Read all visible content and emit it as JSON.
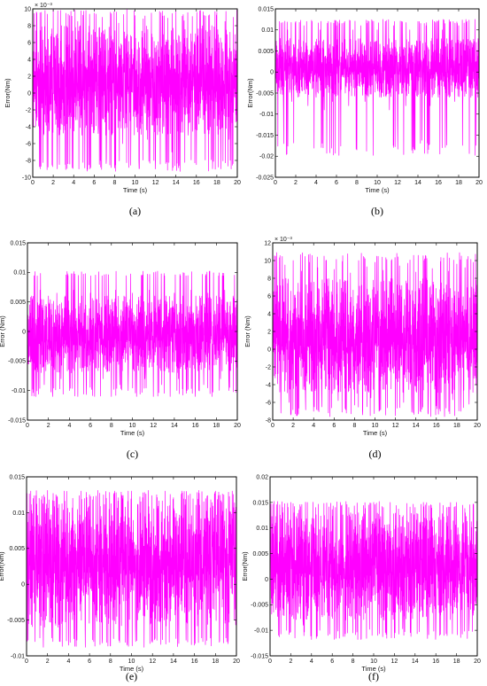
{
  "colors": {
    "trace": "#ff00ff",
    "axes": "#000000",
    "background": "#ffffff"
  },
  "chart_data": [
    {
      "id": "a",
      "type": "line",
      "caption": "(a)",
      "xlabel": "Time (s)",
      "ylabel": "Error(Nm)",
      "exponent": "× 10⁻³",
      "xlim": [
        0,
        20
      ],
      "ylim": [
        -10,
        10
      ],
      "xticks": [
        "0",
        "2",
        "4",
        "6",
        "8",
        "10",
        "12",
        "14",
        "16",
        "18",
        "20"
      ],
      "yticks": [
        "-10",
        "-8",
        "-6",
        "-4",
        "-2",
        "0",
        "2",
        "4",
        "6",
        "8",
        "10"
      ],
      "series": [
        {
          "peak_range": [
            -9.3,
            9.9
          ],
          "typical_range": [
            -5,
            8
          ],
          "x": [
            0.0,
            0.4,
            0.8,
            1.2,
            1.6,
            2.0,
            2.4,
            2.8,
            3.2,
            3.6,
            4.0,
            4.4,
            4.8,
            5.2,
            5.6,
            6.0,
            6.4,
            6.8,
            7.2,
            7.6,
            8.0,
            8.4,
            8.8,
            9.2,
            9.6,
            10.0,
            10.4,
            10.8,
            11.2,
            11.6,
            12.0,
            12.4,
            12.8,
            13.2,
            13.6,
            14.0,
            14.4,
            14.8,
            15.2,
            15.6,
            16.0,
            16.4,
            16.8,
            17.2,
            17.6,
            18.0,
            18.4,
            18.8,
            19.2,
            19.6,
            20.0
          ],
          "y": [
            0,
            9.5,
            -8.7,
            9.8,
            -4.5,
            9.9,
            -9.0,
            8.0,
            -6.5,
            9.2,
            -2.0,
            8.5,
            -5.0,
            9.8,
            -9.0,
            9.5,
            -4.8,
            9.0,
            -7.8,
            9.6,
            -8.9,
            8.3,
            -6.0,
            9.9,
            -3.5,
            9.2,
            -9.0,
            8.8,
            -5.5,
            9.5,
            -8.0,
            9.7,
            -4.0,
            8.9,
            -7.0,
            9.8,
            -9.3,
            8.6,
            -5.0,
            9.1,
            -8.5,
            9.8,
            -4.8,
            9.2,
            -7.5,
            9.6,
            -9.0,
            8.5,
            -5.5,
            9.0,
            0
          ]
        }
      ]
    },
    {
      "id": "b",
      "type": "line",
      "caption": "(b)",
      "xlabel": "Time (s)",
      "ylabel": "Error(Nm)",
      "exponent": "",
      "xlim": [
        0,
        20
      ],
      "ylim": [
        -0.025,
        0.015
      ],
      "xticks": [
        "0",
        "2",
        "4",
        "6",
        "8",
        "10",
        "12",
        "14",
        "16",
        "18",
        "20"
      ],
      "yticks": [
        "-0.025",
        "-0.02",
        "-0.015",
        "-0.01",
        "-0.005",
        "0",
        "0.005",
        "0.01",
        "0.015"
      ],
      "series": [
        {
          "peak_range": [
            -0.0198,
            0.0125
          ],
          "typical_range": [
            -0.006,
            0.008
          ],
          "x": [
            0.0,
            0.4,
            0.8,
            1.2,
            1.6,
            2.0,
            2.4,
            2.8,
            3.2,
            3.6,
            4.0,
            4.4,
            4.8,
            5.2,
            5.6,
            6.0,
            6.4,
            6.8,
            7.2,
            7.6,
            8.0,
            8.4,
            8.8,
            9.2,
            9.6,
            10.0,
            10.4,
            10.8,
            11.2,
            11.6,
            12.0,
            12.4,
            12.8,
            13.2,
            13.6,
            14.0,
            14.4,
            14.8,
            15.2,
            15.6,
            16.0,
            16.4,
            16.8,
            17.2,
            17.6,
            18.0,
            18.4,
            18.8,
            19.2,
            19.6,
            20.0
          ],
          "y": [
            0,
            0.012,
            -0.009,
            0.01,
            -0.007,
            0.012,
            -0.005,
            0.011,
            -0.008,
            0.012,
            -0.006,
            0.01,
            -0.009,
            0.012,
            -0.007,
            0.011,
            -0.005,
            0.012,
            -0.008,
            0.01,
            -0.0185,
            0.011,
            -0.007,
            0.012,
            -0.0198,
            0.01,
            -0.006,
            0.012,
            -0.009,
            0.011,
            -0.0125,
            0.012,
            -0.008,
            0.01,
            -0.007,
            0.012,
            -0.0162,
            0.011,
            -0.008,
            0.012,
            -0.006,
            0.01,
            -0.009,
            0.012,
            -0.007,
            0.011,
            -0.008,
            0.012,
            -0.006,
            0.0125,
            0
          ]
        }
      ]
    },
    {
      "id": "c",
      "type": "line",
      "caption": "(c)",
      "xlabel": "Time (s)",
      "ylabel": "Error (Nm)",
      "exponent": "",
      "xlim": [
        0,
        20
      ],
      "ylim": [
        -0.015,
        0.015
      ],
      "xticks": [
        "0",
        "2",
        "4",
        "6",
        "8",
        "10",
        "12",
        "14",
        "16",
        "18",
        "20"
      ],
      "yticks": [
        "-0.015",
        "-0.01",
        "-0.005",
        "0",
        "0.005",
        "0.01",
        "0.015"
      ],
      "series": [
        {
          "peak_range": [
            -0.011,
            0.0102
          ],
          "typical_range": [
            -0.007,
            0.006
          ],
          "x": [
            0.0,
            0.4,
            0.8,
            1.2,
            1.6,
            2.0,
            2.4,
            2.8,
            3.2,
            3.6,
            4.0,
            4.4,
            4.8,
            5.2,
            5.6,
            6.0,
            6.4,
            6.8,
            7.2,
            7.6,
            8.0,
            8.4,
            8.8,
            9.2,
            9.6,
            10.0,
            10.4,
            10.8,
            11.2,
            11.6,
            12.0,
            12.4,
            12.8,
            13.2,
            13.6,
            14.0,
            14.4,
            14.8,
            15.2,
            15.6,
            16.0,
            16.4,
            16.8,
            17.2,
            17.6,
            18.0,
            18.4,
            18.8,
            19.2,
            19.6,
            20.0
          ],
          "y": [
            0,
            0.006,
            -0.011,
            0.007,
            -0.009,
            0.006,
            -0.011,
            0.0065,
            -0.008,
            0.006,
            -0.01,
            0.007,
            -0.011,
            0.006,
            -0.009,
            0.0065,
            -0.011,
            0.0101,
            -0.008,
            0.006,
            -0.011,
            0.007,
            -0.009,
            0.006,
            -0.01,
            0.0065,
            -0.011,
            0.006,
            -0.008,
            0.007,
            -0.011,
            0.0102,
            -0.009,
            0.006,
            -0.011,
            0.0065,
            -0.008,
            0.006,
            -0.01,
            0.007,
            -0.011,
            0.006,
            -0.009,
            0.0065,
            -0.011,
            0.006,
            -0.008,
            0.007,
            -0.01,
            0.006,
            0
          ]
        }
      ]
    },
    {
      "id": "d",
      "type": "line",
      "caption": "(d)",
      "xlabel": "Time (s)",
      "ylabel": "Error (Nm)",
      "exponent": "× 10⁻³",
      "xlim": [
        0,
        20
      ],
      "ylim": [
        -8,
        12
      ],
      "xticks": [
        "0",
        "2",
        "4",
        "6",
        "8",
        "10",
        "12",
        "14",
        "16",
        "18",
        "20"
      ],
      "yticks": [
        "-8",
        "-6",
        "-4",
        "-2",
        "0",
        "2",
        "4",
        "6",
        "8",
        "10",
        "12"
      ],
      "series": [
        {
          "peak_range": [
            -7.6,
            10.9
          ],
          "typical_range": [
            -5,
            8
          ],
          "x": [
            0.0,
            0.4,
            0.8,
            1.2,
            1.6,
            2.0,
            2.4,
            2.8,
            3.2,
            3.6,
            4.0,
            4.4,
            4.8,
            5.2,
            5.6,
            6.0,
            6.4,
            6.8,
            7.2,
            7.6,
            8.0,
            8.4,
            8.8,
            9.2,
            9.6,
            10.0,
            10.4,
            10.8,
            11.2,
            11.6,
            12.0,
            12.4,
            12.8,
            13.2,
            13.6,
            14.0,
            14.4,
            14.8,
            15.2,
            15.6,
            16.0,
            16.4,
            16.8,
            17.2,
            17.6,
            18.0,
            18.4,
            18.8,
            19.2,
            19.6,
            20.0
          ],
          "y": [
            0,
            10.9,
            -7.2,
            9.5,
            -6.0,
            10.0,
            -7.5,
            8.8,
            -5.5,
            9.8,
            -7.0,
            9.2,
            -6.5,
            10.0,
            -7.6,
            9.0,
            -5.8,
            9.9,
            -7.2,
            8.6,
            -6.3,
            10.0,
            -7.4,
            9.3,
            -5.5,
            9.8,
            -7.0,
            8.9,
            -6.6,
            10.0,
            -7.5,
            9.4,
            -6.0,
            9.7,
            -7.1,
            8.7,
            -5.9,
            10.0,
            -7.3,
            9.1,
            -6.4,
            9.9,
            -7.6,
            8.8,
            -5.7,
            9.6,
            -7.0,
            9.2,
            -6.2,
            9.8,
            0
          ]
        }
      ]
    },
    {
      "id": "e",
      "type": "line",
      "caption": "(e)",
      "xlabel": "Time (s)",
      "ylabel": "Error(Nm)",
      "exponent": "",
      "xlim": [
        0,
        20
      ],
      "ylim": [
        -0.01,
        0.015
      ],
      "xticks": [
        "0",
        "2",
        "4",
        "6",
        "8",
        "10",
        "12",
        "14",
        "16",
        "18",
        "20"
      ],
      "yticks": [
        "-0.01",
        "-0.005",
        "0",
        "0.005",
        "0.01",
        "0.015"
      ],
      "series": [
        {
          "peak_range": [
            -0.0088,
            0.0131
          ],
          "typical_range": [
            -0.006,
            0.012
          ],
          "x": [
            0.0,
            0.4,
            0.8,
            1.2,
            1.6,
            2.0,
            2.4,
            2.8,
            3.2,
            3.6,
            4.0,
            4.4,
            4.8,
            5.2,
            5.6,
            6.0,
            6.4,
            6.8,
            7.2,
            7.6,
            8.0,
            8.4,
            8.8,
            9.2,
            9.6,
            10.0,
            10.4,
            10.8,
            11.2,
            11.6,
            12.0,
            12.4,
            12.8,
            13.2,
            13.6,
            14.0,
            14.4,
            14.8,
            15.2,
            15.6,
            16.0,
            16.4,
            16.8,
            17.2,
            17.6,
            18.0,
            18.4,
            18.8,
            19.2,
            19.6,
            20.0
          ],
          "y": [
            0,
            0.013,
            -0.008,
            0.012,
            -0.0088,
            0.0131,
            -0.0075,
            0.0125,
            -0.008,
            0.013,
            -0.0085,
            0.012,
            -0.0078,
            0.013,
            -0.0088,
            0.0125,
            -0.008,
            0.0131,
            -0.0082,
            0.012,
            -0.0086,
            0.013,
            -0.0077,
            0.0124,
            -0.0085,
            0.013,
            -0.008,
            0.0122,
            -0.0088,
            0.0131,
            -0.0079,
            0.0125,
            -0.0084,
            0.013,
            -0.0081,
            0.0121,
            -0.0087,
            0.013,
            -0.0078,
            0.0126,
            -0.0085,
            0.0131,
            -0.008,
            0.0123,
            -0.0086,
            0.013,
            -0.0079,
            0.0125,
            -0.0083,
            0.013,
            0
          ]
        }
      ]
    },
    {
      "id": "f",
      "type": "line",
      "caption": "(f)",
      "xlabel": "Time (s)",
      "ylabel": "Error(Nm)",
      "exponent": "",
      "xlim": [
        0,
        20
      ],
      "ylim": [
        -0.015,
        0.02
      ],
      "xticks": [
        "0",
        "2",
        "4",
        "6",
        "8",
        "10",
        "12",
        "14",
        "16",
        "18",
        "20"
      ],
      "yticks": [
        "-0.015",
        "-0.01",
        "-0.005",
        "0",
        "0.005",
        "0.01",
        "0.015",
        "0.02"
      ],
      "series": [
        {
          "peak_range": [
            -0.0118,
            0.0152
          ],
          "typical_range": [
            -0.008,
            0.013
          ],
          "x": [
            0.0,
            0.4,
            0.8,
            1.2,
            1.6,
            2.0,
            2.4,
            2.8,
            3.2,
            3.6,
            4.0,
            4.4,
            4.8,
            5.2,
            5.6,
            6.0,
            6.4,
            6.8,
            7.2,
            7.6,
            8.0,
            8.4,
            8.8,
            9.2,
            9.6,
            10.0,
            10.4,
            10.8,
            11.2,
            11.6,
            12.0,
            12.4,
            12.8,
            13.2,
            13.6,
            14.0,
            14.4,
            14.8,
            15.2,
            15.6,
            16.0,
            16.4,
            16.8,
            17.2,
            17.6,
            18.0,
            18.4,
            18.8,
            19.2,
            19.6,
            20.0
          ],
          "y": [
            0,
            0.0152,
            -0.011,
            0.014,
            -0.01,
            0.015,
            -0.0115,
            0.0135,
            -0.009,
            0.015,
            -0.0118,
            0.014,
            -0.01,
            0.0148,
            -0.011,
            0.0136,
            -0.0095,
            0.015,
            -0.0112,
            0.014,
            -0.0105,
            0.0149,
            -0.0117,
            0.0138,
            -0.0098,
            0.015,
            -0.011,
            0.0142,
            -0.0108,
            0.015,
            -0.0115,
            0.0137,
            -0.0097,
            0.0148,
            -0.0112,
            0.014,
            -0.0103,
            0.015,
            -0.0116,
            0.0139,
            -0.0099,
            0.0149,
            -0.011,
            0.0141,
            -0.0107,
            0.015,
            -0.0114,
            0.0138,
            -0.0101,
            0.0147,
            0
          ]
        }
      ]
    }
  ]
}
